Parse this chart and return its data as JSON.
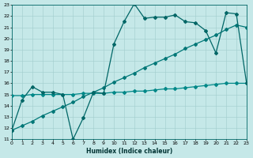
{
  "xlabel": "Humidex (Indice chaleur)",
  "xlim": [
    0,
    23
  ],
  "ylim": [
    11,
    23
  ],
  "yticks": [
    11,
    12,
    13,
    14,
    15,
    16,
    17,
    18,
    19,
    20,
    21,
    22,
    23
  ],
  "xticks": [
    0,
    1,
    2,
    3,
    4,
    5,
    6,
    7,
    8,
    9,
    10,
    11,
    12,
    13,
    14,
    15,
    16,
    17,
    18,
    19,
    20,
    21,
    22,
    23
  ],
  "bg_color": "#c5e8e8",
  "grid_color": "#a0cccc",
  "line1_x": [
    0,
    1,
    2,
    3,
    4,
    5,
    6,
    7,
    8,
    9,
    10,
    11,
    12,
    13,
    14,
    15,
    16,
    17,
    18,
    19,
    20,
    21,
    22,
    23
  ],
  "line1_y": [
    11.8,
    14.5,
    15.7,
    15.2,
    15.2,
    15.0,
    11.0,
    12.9,
    15.2,
    15.1,
    19.5,
    21.5,
    23.1,
    21.8,
    21.9,
    21.9,
    22.1,
    21.5,
    21.4,
    20.7,
    18.7,
    22.3,
    22.2,
    16.0
  ],
  "line2_x": [
    0,
    1,
    2,
    3,
    4,
    5,
    6,
    7,
    8,
    9,
    10,
    11,
    12,
    13,
    14,
    15,
    16,
    17,
    18,
    19,
    20,
    21,
    22,
    23
  ],
  "line2_y": [
    11.8,
    12.2,
    12.6,
    13.1,
    13.5,
    13.9,
    14.3,
    14.8,
    15.2,
    15.6,
    16.1,
    16.5,
    16.9,
    17.4,
    17.8,
    18.2,
    18.6,
    19.1,
    19.5,
    19.9,
    20.3,
    20.8,
    21.2,
    21.0
  ],
  "line3_x": [
    0,
    1,
    2,
    3,
    4,
    5,
    6,
    7,
    8,
    9,
    10,
    11,
    12,
    13,
    14,
    15,
    16,
    17,
    18,
    19,
    20,
    21,
    22,
    23
  ],
  "line3_y": [
    14.9,
    14.9,
    15.0,
    15.0,
    15.0,
    15.0,
    15.0,
    15.1,
    15.1,
    15.1,
    15.2,
    15.2,
    15.3,
    15.3,
    15.4,
    15.5,
    15.5,
    15.6,
    15.7,
    15.8,
    15.9,
    16.0,
    16.0,
    16.0
  ],
  "line_color1": "#006666",
  "line_color2": "#007777",
  "line_color3": "#008888",
  "marker": "D",
  "marker_size": 2.0,
  "line_width": 0.9
}
